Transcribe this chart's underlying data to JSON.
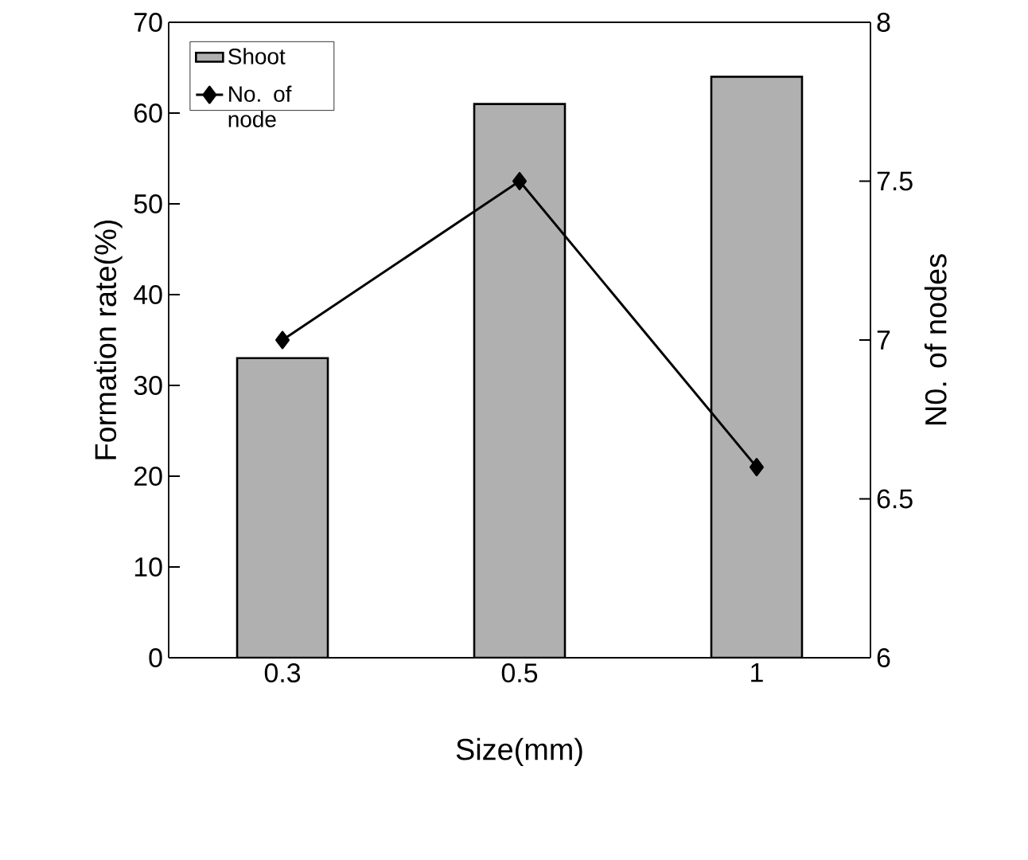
{
  "chart_data": {
    "type": "bar",
    "categories": [
      "0.3",
      "0.5",
      "1"
    ],
    "xlabel": "Size(mm)",
    "ylabel": "Formation rate(%)",
    "y2label": "N0. of nodes",
    "ylim": [
      0,
      70
    ],
    "yticks": [
      0,
      10,
      20,
      30,
      40,
      50,
      60,
      70
    ],
    "y2lim": [
      6,
      8
    ],
    "y2ticks": [
      6,
      6.5,
      7,
      7.5,
      8
    ],
    "legend": "top left",
    "marker": "diamond",
    "series": [
      {
        "name": "Shoot",
        "color": "#b0b0b0",
        "values": [
          33,
          61,
          64
        ]
      },
      {
        "name": "No. of node",
        "type": "line",
        "axis": "y2",
        "color": "#000000",
        "values": [
          7.0,
          7.5,
          6.6
        ]
      }
    ]
  }
}
